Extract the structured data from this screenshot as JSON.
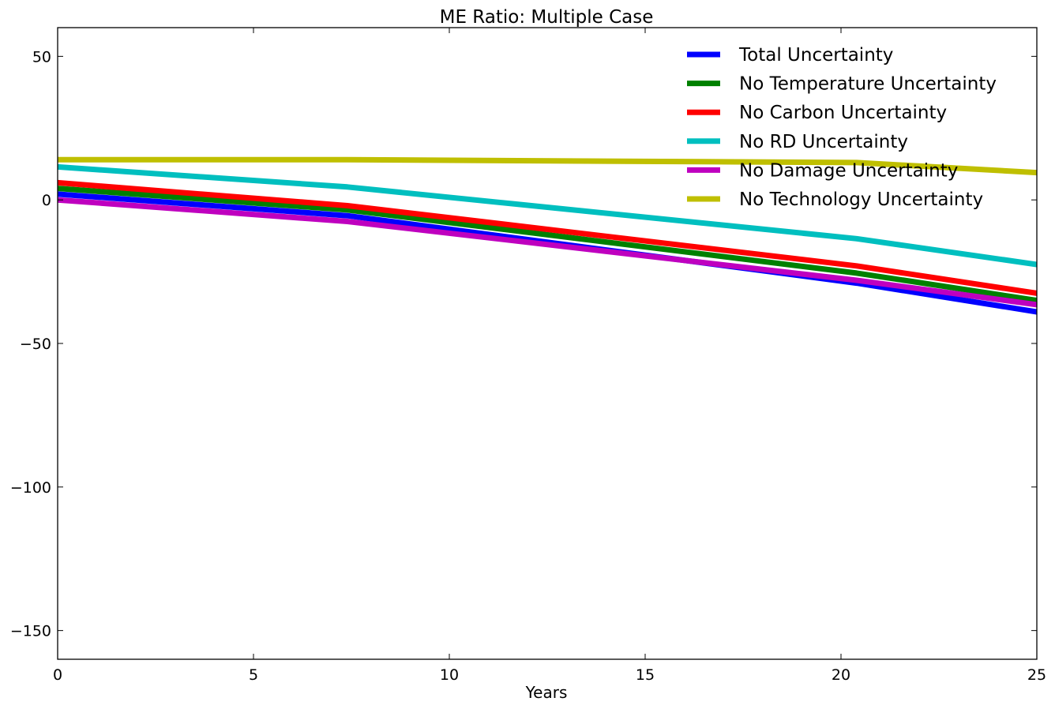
{
  "chart_data": {
    "type": "line",
    "title": "ME Ratio: Multiple Case",
    "xlabel": "Years",
    "ylabel": "",
    "xlim": [
      0,
      25
    ],
    "ylim": [
      -160,
      60
    ],
    "x_ticks": [
      0,
      5,
      10,
      15,
      20,
      25
    ],
    "y_ticks": [
      50,
      0,
      -50,
      -100,
      -150
    ],
    "y_tick_labels": [
      "50",
      "0",
      "−50",
      "−100",
      "−150"
    ],
    "x_tick_labels": [
      "0",
      "5",
      "10",
      "15",
      "20",
      "25"
    ],
    "grid": false,
    "legend_position": "top-right",
    "x": [
      0,
      7.4,
      20.4,
      25
    ],
    "series": [
      {
        "name": "Total Uncertainty",
        "color": "#0000ff",
        "values": [
          2,
          -5.5,
          -29,
          -39
        ]
      },
      {
        "name": "No Temperature Uncertainty",
        "color": "#008000",
        "values": [
          4,
          -3.5,
          -25.5,
          -35
        ]
      },
      {
        "name": "No Carbon Uncertainty",
        "color": "#ff0000",
        "values": [
          6,
          -2,
          -23,
          -32.5
        ]
      },
      {
        "name": "No RD Uncertainty",
        "color": "#00bfbf",
        "values": [
          11.5,
          4.5,
          -13.5,
          -22.5
        ]
      },
      {
        "name": "No Damage Uncertainty",
        "color": "#bf00bf",
        "values": [
          0,
          -7.5,
          -28,
          -36.5
        ]
      },
      {
        "name": "No Technology Uncertainty",
        "color": "#bfbf00",
        "values": [
          14,
          14,
          13,
          9.5
        ]
      }
    ]
  }
}
